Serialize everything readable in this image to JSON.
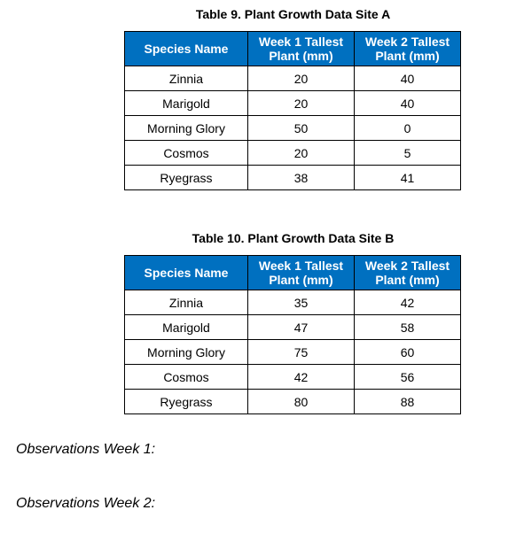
{
  "tables": [
    {
      "caption": "Table 9. Plant Growth Data Site A",
      "headers": [
        {
          "line1": "Species Name",
          "line2": ""
        },
        {
          "line1": "Week 1 Tallest",
          "line2": "Plant (mm)"
        },
        {
          "line1": "Week 2 Tallest",
          "line2": "Plant (mm)"
        }
      ],
      "rows": [
        [
          "Zinnia",
          "20",
          "40"
        ],
        [
          "Marigold",
          "20",
          "40"
        ],
        [
          "Morning Glory",
          "50",
          "0"
        ],
        [
          "Cosmos",
          "20",
          "5"
        ],
        [
          "Ryegrass",
          "38",
          "41"
        ]
      ]
    },
    {
      "caption": "Table 10. Plant Growth Data Site B",
      "headers": [
        {
          "line1": "Species Name",
          "line2": ""
        },
        {
          "line1": "Week 1 Tallest",
          "line2": "Plant (mm)"
        },
        {
          "line1": "Week 2 Tallest",
          "line2": "Plant (mm)"
        }
      ],
      "rows": [
        [
          "Zinnia",
          "35",
          "42"
        ],
        [
          "Marigold",
          "47",
          "58"
        ],
        [
          "Morning Glory",
          "75",
          "60"
        ],
        [
          "Cosmos",
          "42",
          "56"
        ],
        [
          "Ryegrass",
          "80",
          "88"
        ]
      ]
    }
  ],
  "observations": [
    "Observations Week 1:",
    "Observations Week 2:"
  ],
  "colors": {
    "header_background": "#0070c0",
    "header_text": "#ffffff",
    "border": "#000000"
  }
}
